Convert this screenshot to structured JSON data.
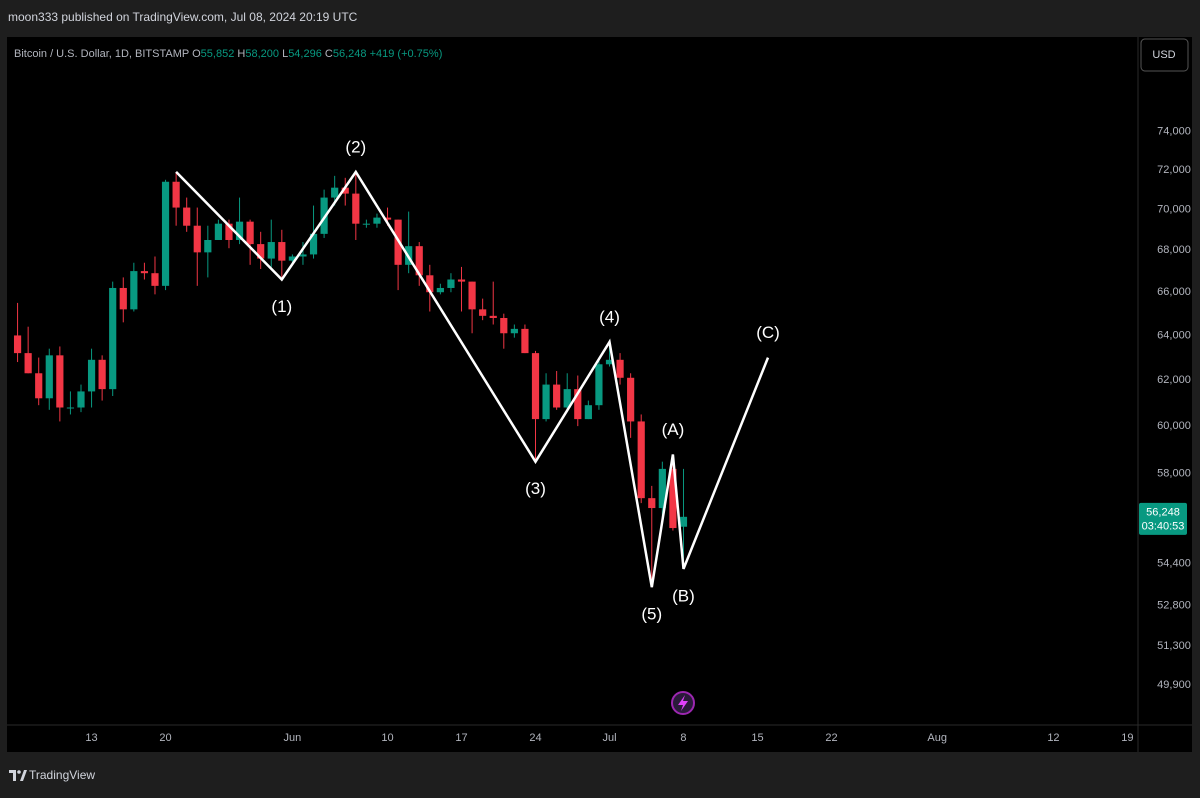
{
  "header": {
    "published": "moon333 published on TradingView.com, Jul 08, 2024 20:19 UTC"
  },
  "footer": {
    "brand": "TradingView"
  },
  "chart_data": {
    "type": "candlestick",
    "symbol": "Bitcoin / U.S. Dollar, 1D, BITSTAMP",
    "ohlc_header": [
      {
        "key": "O",
        "label": "55,852"
      },
      {
        "key": "H",
        "label": "58,200"
      },
      {
        "key": "L",
        "label": "54,296"
      },
      {
        "key": "C",
        "label": "56,248"
      }
    ],
    "change": "+419 (+0.75%)",
    "currency": "USD",
    "last_price_label": "56,248",
    "countdown": "03:40:53",
    "up_color": "#089981",
    "down_color": "#f23645",
    "log_scale": true,
    "grid": false,
    "xlim": [
      "2024-05-05",
      "2024-08-20"
    ],
    "ylim": [
      48500,
      79150
    ],
    "yticks": [
      {
        "value": 49900,
        "label": "49,900"
      },
      {
        "value": 51300,
        "label": "51,300"
      },
      {
        "value": 52800,
        "label": "52,800"
      },
      {
        "value": 54400,
        "label": "54,400"
      },
      {
        "value": 58000,
        "label": "58,000"
      },
      {
        "value": 60000,
        "label": "60,000"
      },
      {
        "value": 62000,
        "label": "62,000"
      },
      {
        "value": 64000,
        "label": "64,000"
      },
      {
        "value": 66000,
        "label": "66,000"
      },
      {
        "value": 68000,
        "label": "68,000"
      },
      {
        "value": 70000,
        "label": "70,000"
      },
      {
        "value": 72000,
        "label": "72,000"
      },
      {
        "value": 74000,
        "label": "74,000"
      }
    ],
    "xticks": [
      {
        "value": "2024-05-13",
        "label": "13"
      },
      {
        "value": "2024-05-20",
        "label": "20"
      },
      {
        "value": "2024-06-01",
        "label": "Jun"
      },
      {
        "value": "2024-06-10",
        "label": "10"
      },
      {
        "value": "2024-06-17",
        "label": "17"
      },
      {
        "value": "2024-06-24",
        "label": "24"
      },
      {
        "value": "2024-07-01",
        "label": "Jul"
      },
      {
        "value": "2024-07-08",
        "label": "8"
      },
      {
        "value": "2024-07-15",
        "label": "15"
      },
      {
        "value": "2024-07-22",
        "label": "22"
      },
      {
        "value": "2024-08-01",
        "label": "Aug"
      },
      {
        "value": "2024-08-12",
        "label": "12"
      },
      {
        "value": "2024-08-19",
        "label": "19"
      }
    ],
    "x": [
      "2024-05-06",
      "2024-05-07",
      "2024-05-08",
      "2024-05-09",
      "2024-05-10",
      "2024-05-11",
      "2024-05-12",
      "2024-05-13",
      "2024-05-14",
      "2024-05-15",
      "2024-05-16",
      "2024-05-17",
      "2024-05-18",
      "2024-05-19",
      "2024-05-20",
      "2024-05-21",
      "2024-05-22",
      "2024-05-23",
      "2024-05-24",
      "2024-05-25",
      "2024-05-26",
      "2024-05-27",
      "2024-05-28",
      "2024-05-29",
      "2024-05-30",
      "2024-05-31",
      "2024-06-01",
      "2024-06-02",
      "2024-06-03",
      "2024-06-04",
      "2024-06-05",
      "2024-06-06",
      "2024-06-07",
      "2024-06-08",
      "2024-06-09",
      "2024-06-10",
      "2024-06-11",
      "2024-06-12",
      "2024-06-13",
      "2024-06-14",
      "2024-06-15",
      "2024-06-16",
      "2024-06-17",
      "2024-06-18",
      "2024-06-19",
      "2024-06-20",
      "2024-06-21",
      "2024-06-22",
      "2024-06-23",
      "2024-06-24",
      "2024-06-25",
      "2024-06-26",
      "2024-06-27",
      "2024-06-28",
      "2024-06-29",
      "2024-06-30",
      "2024-07-01",
      "2024-07-02",
      "2024-07-03",
      "2024-07-04",
      "2024-07-05",
      "2024-07-06",
      "2024-07-07",
      "2024-07-08"
    ],
    "open": [
      64000,
      63200,
      62300,
      61200,
      63100,
      60800,
      60800,
      61500,
      62900,
      61600,
      66200,
      65200,
      67000,
      66900,
      66300,
      71400,
      70100,
      69200,
      67900,
      68500,
      69300,
      68500,
      69400,
      68300,
      67600,
      68400,
      67500,
      67700,
      67800,
      68800,
      70600,
      71100,
      70800,
      69300,
      69300,
      69600,
      69500,
      67300,
      68200,
      66800,
      66000,
      66200,
      66600,
      66500,
      65200,
      64900,
      64800,
      64100,
      64300,
      63200,
      60300,
      61800,
      60800,
      61600,
      60300,
      60900,
      62700,
      62900,
      62100,
      60200,
      57000,
      56600,
      58200,
      55852
    ],
    "high": [
      65500,
      64400,
      63000,
      63400,
      63500,
      61500,
      61800,
      63400,
      63100,
      66500,
      66700,
      67400,
      67400,
      67700,
      71500,
      71900,
      70600,
      70100,
      69200,
      69500,
      69500,
      70600,
      69500,
      68900,
      69500,
      69000,
      67800,
      68400,
      70200,
      71000,
      71700,
      71600,
      71900,
      69500,
      69800,
      70100,
      69500,
      69900,
      68400,
      67300,
      66400,
      66900,
      67200,
      66500,
      65700,
      66500,
      65000,
      64500,
      64500,
      63300,
      62300,
      62400,
      62300,
      62200,
      61100,
      63000,
      63800,
      63200,
      62300,
      60500,
      57500,
      58500,
      58500,
      58200
    ],
    "low": [
      62800,
      62300,
      60900,
      60700,
      60200,
      60500,
      60600,
      60800,
      61100,
      61300,
      64600,
      65100,
      66600,
      65900,
      66100,
      69200,
      68900,
      66300,
      66700,
      68500,
      68100,
      68300,
      67300,
      67100,
      67100,
      66600,
      67400,
      67300,
      67600,
      68600,
      70200,
      70200,
      68500,
      69100,
      69100,
      69200,
      66100,
      66900,
      66300,
      65100,
      65900,
      66000,
      65100,
      64100,
      64700,
      64500,
      63400,
      63900,
      63200,
      58500,
      60200,
      60700,
      60600,
      60000,
      60300,
      60700,
      62600,
      61800,
      59500,
      56800,
      53500,
      56000,
      55700,
      54296
    ],
    "close": [
      63200,
      62300,
      61200,
      63100,
      60800,
      60800,
      61500,
      62900,
      61600,
      66200,
      65200,
      67000,
      66900,
      66300,
      71400,
      70100,
      69200,
      67900,
      68500,
      69300,
      68500,
      69400,
      68300,
      67600,
      68400,
      67500,
      67700,
      67800,
      68800,
      70600,
      71100,
      70800,
      69300,
      69300,
      69600,
      69500,
      67300,
      68200,
      66800,
      66000,
      66200,
      66600,
      66500,
      65200,
      64900,
      64800,
      64100,
      64300,
      63200,
      60300,
      61800,
      60800,
      61600,
      60300,
      60900,
      62700,
      62900,
      62100,
      60200,
      57000,
      56600,
      58200,
      55800,
      56248
    ],
    "wave": {
      "color": "#ffffff",
      "points": [
        {
          "x": "2024-05-21",
          "y": 71900
        },
        {
          "x": "2024-05-31",
          "y": 66600,
          "label": "(1)",
          "position": "below"
        },
        {
          "x": "2024-06-07",
          "y": 71900,
          "label": "(2)",
          "position": "above"
        },
        {
          "x": "2024-06-24",
          "y": 58500,
          "label": "(3)",
          "position": "below"
        },
        {
          "x": "2024-07-01",
          "y": 63700,
          "label": "(4)",
          "position": "above"
        },
        {
          "x": "2024-07-05",
          "y": 53500,
          "label": "(5)",
          "position": "below"
        },
        {
          "x": "2024-07-07",
          "y": 58800,
          "label": "(A)",
          "position": "above"
        },
        {
          "x": "2024-07-08",
          "y": 54200,
          "label": "(B)",
          "position": "below"
        },
        {
          "x": "2024-07-16",
          "y": 63000,
          "label": "(C)",
          "position": "above"
        }
      ]
    }
  }
}
